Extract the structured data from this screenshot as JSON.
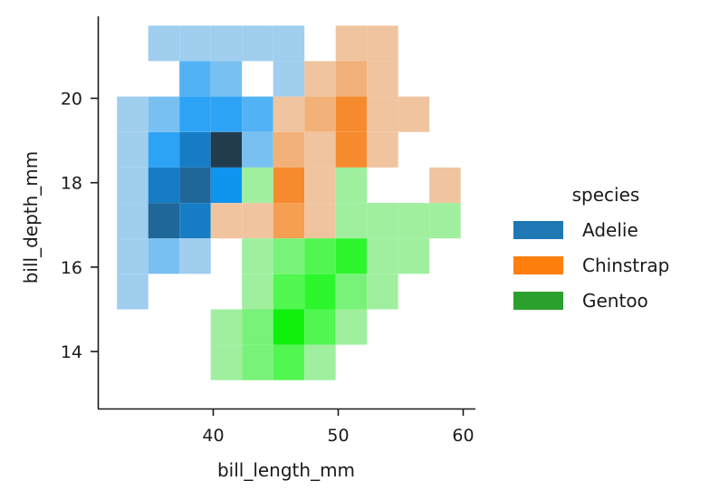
{
  "chart_data": {
    "type": "heatmap",
    "title": "",
    "xlabel": "bill_length_mm",
    "ylabel": "bill_depth_mm",
    "xlim": [
      31.0,
      61.1
    ],
    "ylim": [
      12.7,
      22.0
    ],
    "x_ticks": [
      40,
      50,
      60
    ],
    "y_ticks": [
      14,
      16,
      18,
      20
    ],
    "x_tick_labels": [
      "40",
      "50",
      "60"
    ],
    "y_tick_labels": [
      "14",
      "16",
      "18",
      "20"
    ],
    "grid": false,
    "bin_width_x": 2.5,
    "bin_height_y": 0.84,
    "legend": {
      "title": "species",
      "placement": "right",
      "entries": [
        "Adelie",
        "Chinstrap",
        "Gentoo"
      ]
    },
    "series": [
      {
        "name": "Adelie",
        "color": "#1f77b4",
        "cells": [
          {
            "x0": 34.8,
            "y0": 20.88,
            "level": 1
          },
          {
            "x0": 37.3,
            "y0": 20.88,
            "level": 1
          },
          {
            "x0": 39.8,
            "y0": 20.88,
            "level": 1
          },
          {
            "x0": 42.3,
            "y0": 20.88,
            "level": 1
          },
          {
            "x0": 44.8,
            "y0": 20.88,
            "level": 1
          },
          {
            "x0": 37.3,
            "y0": 20.04,
            "level": 3
          },
          {
            "x0": 39.8,
            "y0": 20.04,
            "level": 2
          },
          {
            "x0": 44.8,
            "y0": 20.04,
            "level": 1
          },
          {
            "x0": 32.3,
            "y0": 19.2,
            "level": 1
          },
          {
            "x0": 34.8,
            "y0": 19.2,
            "level": 2
          },
          {
            "x0": 37.3,
            "y0": 19.2,
            "level": 4
          },
          {
            "x0": 39.8,
            "y0": 19.2,
            "level": 4
          },
          {
            "x0": 42.3,
            "y0": 19.2,
            "level": 3
          },
          {
            "x0": 32.3,
            "y0": 18.36,
            "level": 1
          },
          {
            "x0": 34.8,
            "y0": 18.36,
            "level": 4
          },
          {
            "x0": 37.3,
            "y0": 18.36,
            "level": 6
          },
          {
            "x0": 39.8,
            "y0": 18.36,
            "level": 9
          },
          {
            "x0": 42.3,
            "y0": 18.36,
            "level": 2
          },
          {
            "x0": 32.3,
            "y0": 17.52,
            "level": 1
          },
          {
            "x0": 34.8,
            "y0": 17.52,
            "level": 6
          },
          {
            "x0": 37.3,
            "y0": 17.52,
            "level": 7
          },
          {
            "x0": 39.8,
            "y0": 17.52,
            "level": 5
          },
          {
            "x0": 32.3,
            "y0": 16.68,
            "level": 1
          },
          {
            "x0": 34.8,
            "y0": 16.68,
            "level": 7
          },
          {
            "x0": 37.3,
            "y0": 16.68,
            "level": 6
          },
          {
            "x0": 32.3,
            "y0": 15.84,
            "level": 1
          },
          {
            "x0": 34.8,
            "y0": 15.84,
            "level": 2
          },
          {
            "x0": 37.3,
            "y0": 15.84,
            "level": 1
          },
          {
            "x0": 32.3,
            "y0": 15.0,
            "level": 1
          }
        ]
      },
      {
        "name": "Chinstrap",
        "color": "#ff7f0e",
        "cells": [
          {
            "x0": 49.8,
            "y0": 20.88,
            "level": 1
          },
          {
            "x0": 52.3,
            "y0": 20.88,
            "level": 1
          },
          {
            "x0": 47.3,
            "y0": 20.04,
            "level": 1
          },
          {
            "x0": 49.8,
            "y0": 20.04,
            "level": 2
          },
          {
            "x0": 52.3,
            "y0": 20.04,
            "level": 1
          },
          {
            "x0": 44.8,
            "y0": 19.2,
            "level": 1
          },
          {
            "x0": 47.3,
            "y0": 19.2,
            "level": 2
          },
          {
            "x0": 49.8,
            "y0": 19.2,
            "level": 4
          },
          {
            "x0": 52.3,
            "y0": 19.2,
            "level": 1
          },
          {
            "x0": 54.8,
            "y0": 19.2,
            "level": 1
          },
          {
            "x0": 44.8,
            "y0": 18.36,
            "level": 2
          },
          {
            "x0": 47.3,
            "y0": 18.36,
            "level": 1
          },
          {
            "x0": 49.8,
            "y0": 18.36,
            "level": 4
          },
          {
            "x0": 52.3,
            "y0": 18.36,
            "level": 1
          },
          {
            "x0": 44.8,
            "y0": 17.52,
            "level": 4
          },
          {
            "x0": 47.3,
            "y0": 17.52,
            "level": 1
          },
          {
            "x0": 57.3,
            "y0": 17.52,
            "level": 1
          },
          {
            "x0": 39.8,
            "y0": 16.68,
            "level": 1
          },
          {
            "x0": 42.3,
            "y0": 16.68,
            "level": 1
          },
          {
            "x0": 44.8,
            "y0": 16.68,
            "level": 3
          },
          {
            "x0": 47.3,
            "y0": 16.68,
            "level": 1
          }
        ]
      },
      {
        "name": "Gentoo",
        "color": "#2ca02c",
        "cells": [
          {
            "x0": 42.3,
            "y0": 17.52,
            "level": 1
          },
          {
            "x0": 49.8,
            "y0": 17.52,
            "level": 1
          },
          {
            "x0": 49.8,
            "y0": 16.68,
            "level": 1
          },
          {
            "x0": 52.3,
            "y0": 16.68,
            "level": 1
          },
          {
            "x0": 54.8,
            "y0": 16.68,
            "level": 1
          },
          {
            "x0": 57.3,
            "y0": 16.68,
            "level": 1
          },
          {
            "x0": 42.3,
            "y0": 15.84,
            "level": 1
          },
          {
            "x0": 44.8,
            "y0": 15.84,
            "level": 2
          },
          {
            "x0": 47.3,
            "y0": 15.84,
            "level": 3
          },
          {
            "x0": 49.8,
            "y0": 15.84,
            "level": 4
          },
          {
            "x0": 52.3,
            "y0": 15.84,
            "level": 1
          },
          {
            "x0": 54.8,
            "y0": 15.84,
            "level": 1
          },
          {
            "x0": 42.3,
            "y0": 15.0,
            "level": 1
          },
          {
            "x0": 44.8,
            "y0": 15.0,
            "level": 3
          },
          {
            "x0": 47.3,
            "y0": 15.0,
            "level": 4
          },
          {
            "x0": 49.8,
            "y0": 15.0,
            "level": 2
          },
          {
            "x0": 52.3,
            "y0": 15.0,
            "level": 1
          },
          {
            "x0": 39.8,
            "y0": 14.16,
            "level": 1
          },
          {
            "x0": 42.3,
            "y0": 14.16,
            "level": 2
          },
          {
            "x0": 44.8,
            "y0": 14.16,
            "level": 5
          },
          {
            "x0": 47.3,
            "y0": 14.16,
            "level": 3
          },
          {
            "x0": 49.8,
            "y0": 14.16,
            "level": 1
          },
          {
            "x0": 39.8,
            "y0": 13.32,
            "level": 1
          },
          {
            "x0": 42.3,
            "y0": 13.32,
            "level": 2
          },
          {
            "x0": 44.8,
            "y0": 13.32,
            "level": 3
          },
          {
            "x0": 47.3,
            "y0": 13.32,
            "level": 1
          }
        ]
      }
    ]
  }
}
